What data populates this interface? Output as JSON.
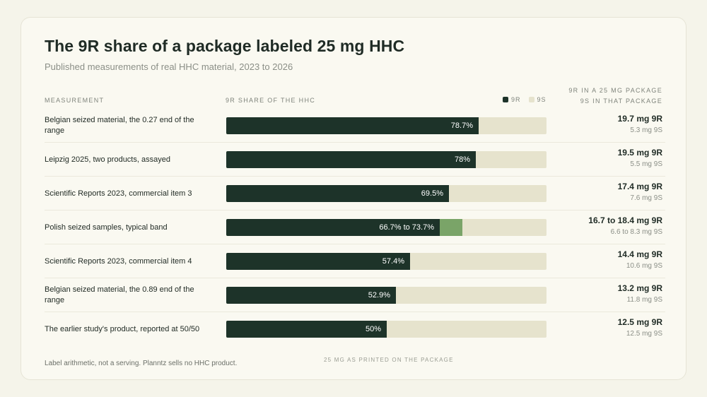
{
  "title": "The 9R share of a package labeled 25 mg HHC",
  "subtitle": "Published measurements of real HHC material, 2023 to 2026",
  "headers": {
    "measurement": "MEASUREMENT",
    "share": "9R SHARE OF THE HHC",
    "legend_9r": "9R",
    "legend_9s": "9S",
    "package_line1": "9R IN A 25 MG PACKAGE",
    "package_line2": "9S IN THAT PACKAGE"
  },
  "colors": {
    "r9": "#1d3329",
    "s9": "#e6e3cd",
    "band": "#7aa468"
  },
  "chart_data": {
    "type": "bar",
    "orientation": "horizontal",
    "stacked": true,
    "xlim": [
      0,
      100
    ],
    "unit": "%",
    "categories": [
      "Belgian seized material, the 0.27 end of the range",
      "Leipzig 2025, two products, assayed",
      "Scientific Reports 2023, commercial item 3",
      "Polish seized samples, typical band",
      "Scientific Reports 2023, commercial item 4",
      "Belgian seized material, the 0.89 end of the range",
      "The earlier study's product, reported at 50/50"
    ],
    "rows": [
      {
        "label": "Belgian seized material, the 0.27 end of the range",
        "share_low": 78.7,
        "share_high": 78.7,
        "share_text": "78.7%",
        "mg9r": "19.7 mg 9R",
        "mg9s": "5.3 mg 9S"
      },
      {
        "label": "Leipzig 2025, two products, assayed",
        "share_low": 78,
        "share_high": 78,
        "share_text": "78%",
        "mg9r": "19.5 mg 9R",
        "mg9s": "5.5 mg 9S"
      },
      {
        "label": "Scientific Reports 2023, commercial item 3",
        "share_low": 69.5,
        "share_high": 69.5,
        "share_text": "69.5%",
        "mg9r": "17.4 mg 9R",
        "mg9s": "7.6 mg 9S"
      },
      {
        "label": "Polish seized samples, typical band",
        "share_low": 66.7,
        "share_high": 73.7,
        "share_text": "66.7% to 73.7%",
        "mg9r": "16.7 to 18.4 mg 9R",
        "mg9s": "6.6 to 8.3 mg 9S"
      },
      {
        "label": "Scientific Reports 2023, commercial item 4",
        "share_low": 57.4,
        "share_high": 57.4,
        "share_text": "57.4%",
        "mg9r": "14.4 mg 9R",
        "mg9s": "10.6 mg 9S"
      },
      {
        "label": "Belgian seized material, the 0.89 end of the range",
        "share_low": 52.9,
        "share_high": 52.9,
        "share_text": "52.9%",
        "mg9r": "13.2 mg 9R",
        "mg9s": "11.8 mg 9S"
      },
      {
        "label": "The earlier study's product, reported at 50/50",
        "share_low": 50,
        "share_high": 50,
        "share_text": "50%",
        "mg9r": "12.5 mg 9R",
        "mg9s": "12.5 mg 9S"
      }
    ]
  },
  "footnote": "Label arithmetic, not a serving. Planntz sells no HHC product.",
  "axis_note": "25 MG AS PRINTED ON THE PACKAGE"
}
